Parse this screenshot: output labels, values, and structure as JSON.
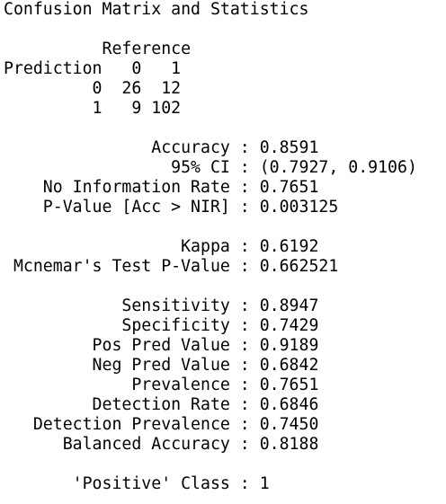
{
  "title": "Confusion Matrix and Statistics",
  "lines": [
    "Confusion Matrix and Statistics",
    "",
    "          Reference",
    "Prediction   0   1",
    "         0  26  12",
    "         1   9 102",
    "",
    "               Accuracy : 0.8591",
    "                 95% CI : (0.7927, 0.9106)",
    "    No Information Rate : 0.7651",
    "    P-Value [Acc > NIR] : 0.003125",
    "",
    "                  Kappa : 0.6192",
    " Mcnemar's Test P-Value : 0.662521",
    "",
    "            Sensitivity : 0.8947",
    "            Specificity : 0.7429",
    "         Pos Pred Value : 0.9189",
    "         Neg Pred Value : 0.6842",
    "             Prevalence : 0.7651",
    "         Detection Rate : 0.6846",
    "   Detection Prevalence : 0.7450",
    "      Balanced Accuracy : 0.8188",
    "",
    "       'Positive' Class : 1"
  ]
}
